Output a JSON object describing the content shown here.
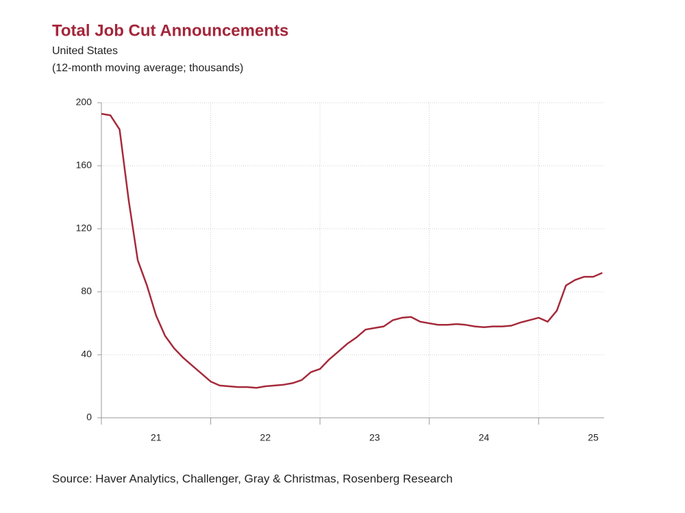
{
  "chart_data": {
    "type": "line",
    "title": "Total Job Cut Announcements",
    "subtitle": "United States",
    "subtitle2": "(12-month moving average; thousands)",
    "source": "Source: Haver Analytics, Challenger, Gray & Christmas, Rosenberg Research",
    "x": [
      21,
      21.083,
      21.167,
      21.25,
      21.333,
      21.417,
      21.5,
      21.583,
      21.667,
      21.75,
      21.833,
      21.917,
      22,
      22.083,
      22.167,
      22.25,
      22.333,
      22.417,
      22.5,
      22.583,
      22.667,
      22.75,
      22.833,
      22.917,
      23,
      23.083,
      23.167,
      23.25,
      23.333,
      23.417,
      23.5,
      23.583,
      23.667,
      23.75,
      23.833,
      23.917,
      24,
      24.083,
      24.167,
      24.25,
      24.333,
      24.417,
      24.5,
      24.583,
      24.667,
      24.75,
      24.833,
      24.917,
      25,
      25.083,
      25.167,
      25.25,
      25.333,
      25.417,
      25.5,
      25.583
    ],
    "series": [
      {
        "name": "Total Job Cut Announcements",
        "color": "#a52a3a",
        "values": [
          193,
          192,
          183,
          138,
          100,
          84,
          65,
          52,
          44,
          38,
          33,
          28,
          23,
          20.5,
          20,
          19.5,
          19.5,
          19,
          20,
          20.5,
          21,
          22,
          24,
          29,
          31,
          37,
          42,
          47,
          51,
          56,
          57,
          58,
          62,
          63.5,
          64,
          61,
          60,
          59,
          59,
          59.5,
          59,
          58,
          57.5,
          58,
          58,
          58.5,
          60.5,
          62,
          63.5,
          61,
          68,
          84,
          87.5,
          89.5,
          89.5,
          92
        ]
      }
    ],
    "xlim": [
      21,
      25.6
    ],
    "xticks": [
      {
        "value": 21.5,
        "label": "21"
      },
      {
        "value": 22.5,
        "label": "22"
      },
      {
        "value": 23.5,
        "label": "23"
      },
      {
        "value": 24.5,
        "label": "24"
      },
      {
        "value": 25.5,
        "label": "25"
      }
    ],
    "xgrid": [
      22,
      23,
      24,
      25
    ],
    "ylim": [
      0,
      200
    ],
    "yticks": [
      0,
      40,
      80,
      120,
      160,
      200
    ],
    "grid": true
  }
}
